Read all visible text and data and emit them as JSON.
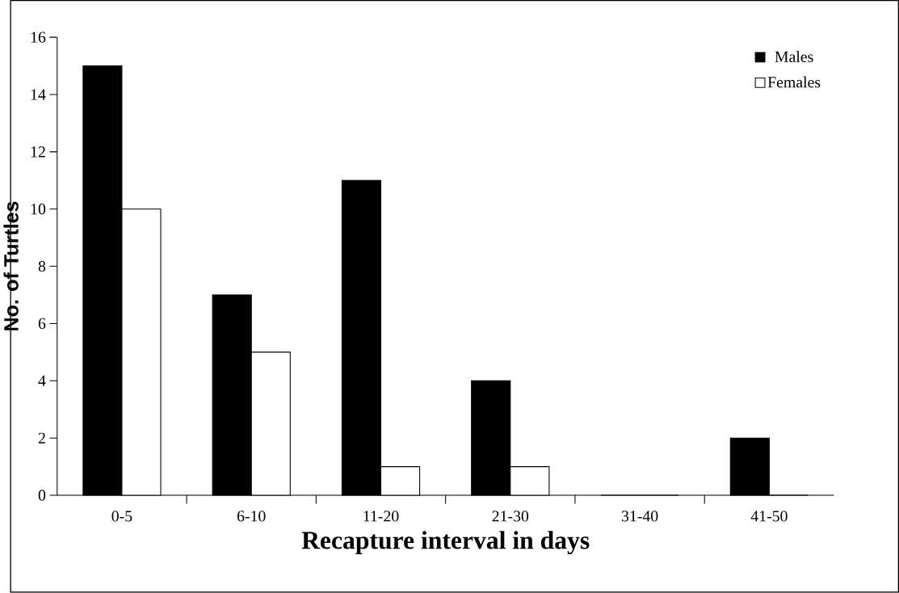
{
  "chart_data": {
    "type": "bar",
    "xlabel": "Recapture interval in days",
    "ylabel": "No. of Turtles",
    "categories": [
      "0-5",
      "6-10",
      "11-20",
      "21-30",
      "31-40",
      "41-50"
    ],
    "series": [
      {
        "name": "Males",
        "color": "#000000",
        "values": [
          15,
          7,
          11,
          4,
          0,
          2
        ]
      },
      {
        "name": "Females",
        "color": "#ffffff",
        "values": [
          10,
          5,
          1,
          1,
          0,
          0
        ]
      }
    ],
    "ylim": [
      0,
      16
    ],
    "yticks": [
      0,
      2,
      4,
      6,
      8,
      10,
      12,
      14,
      16
    ],
    "grid": false,
    "legend": "top right"
  }
}
